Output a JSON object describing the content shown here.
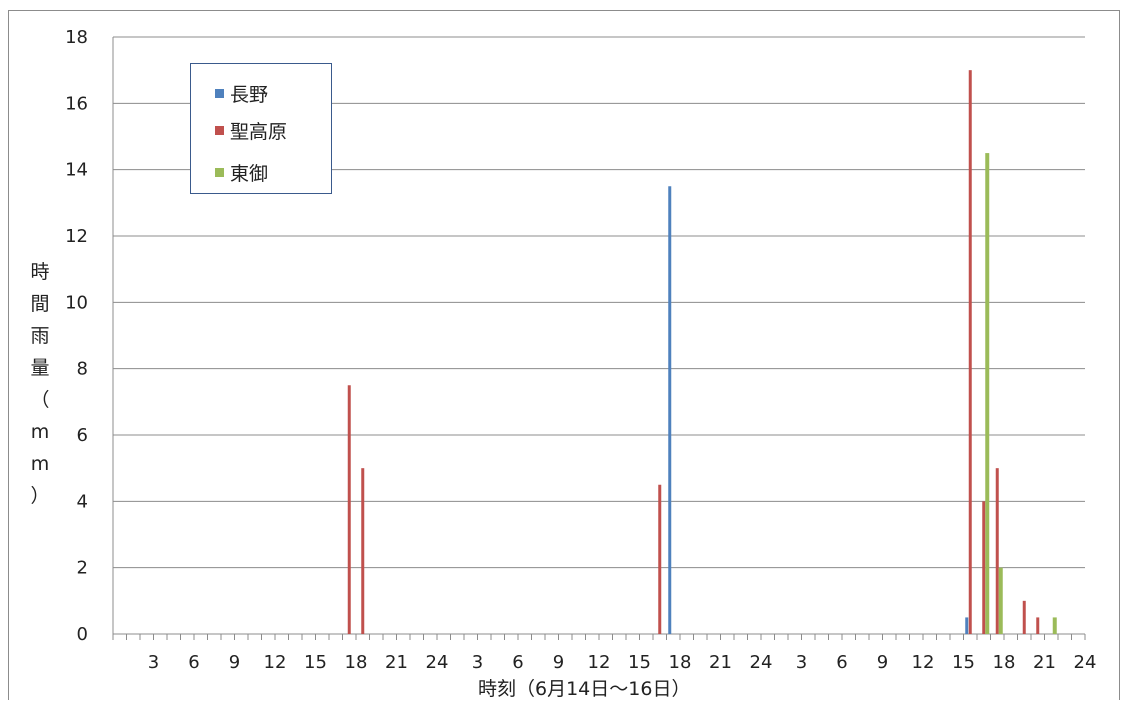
{
  "chart_data": {
    "type": "bar",
    "title": "",
    "xlabel": "時刻（6月14日～16日）",
    "ylabel": "時間雨量（mm）",
    "ylim": [
      0,
      18
    ],
    "yticks": [
      0,
      2,
      4,
      6,
      8,
      10,
      12,
      14,
      16,
      18
    ],
    "grid": true,
    "legend_position": "top-left",
    "x_tick_labels": [
      "3",
      "6",
      "9",
      "12",
      "15",
      "18",
      "21",
      "24",
      "3",
      "6",
      "9",
      "12",
      "15",
      "18",
      "21",
      "24",
      "3",
      "6",
      "9",
      "12",
      "15",
      "18",
      "21",
      "24"
    ],
    "hours_total": 72,
    "series": [
      {
        "name": "長野",
        "color": "#4f81bd",
        "points": [
          {
            "day": 15,
            "hour": 18,
            "value": 13.5
          },
          {
            "day": 16,
            "hour": 16,
            "value": 0.5
          }
        ]
      },
      {
        "name": "聖高原",
        "color": "#c0504d",
        "points": [
          {
            "day": 14,
            "hour": 18,
            "value": 7.5
          },
          {
            "day": 14,
            "hour": 19,
            "value": 5
          },
          {
            "day": 15,
            "hour": 17,
            "value": 4.5
          },
          {
            "day": 16,
            "hour": 16,
            "value": 17
          },
          {
            "day": 16,
            "hour": 17,
            "value": 4
          },
          {
            "day": 16,
            "hour": 18,
            "value": 5
          },
          {
            "day": 16,
            "hour": 20,
            "value": 1
          },
          {
            "day": 16,
            "hour": 21,
            "value": 0.5
          }
        ]
      },
      {
        "name": "東御",
        "color": "#9bbb59",
        "points": [
          {
            "day": 16,
            "hour": 17,
            "value": 14.5
          },
          {
            "day": 16,
            "hour": 18,
            "value": 2
          },
          {
            "day": 16,
            "hour": 22,
            "value": 0.5
          }
        ]
      }
    ]
  }
}
